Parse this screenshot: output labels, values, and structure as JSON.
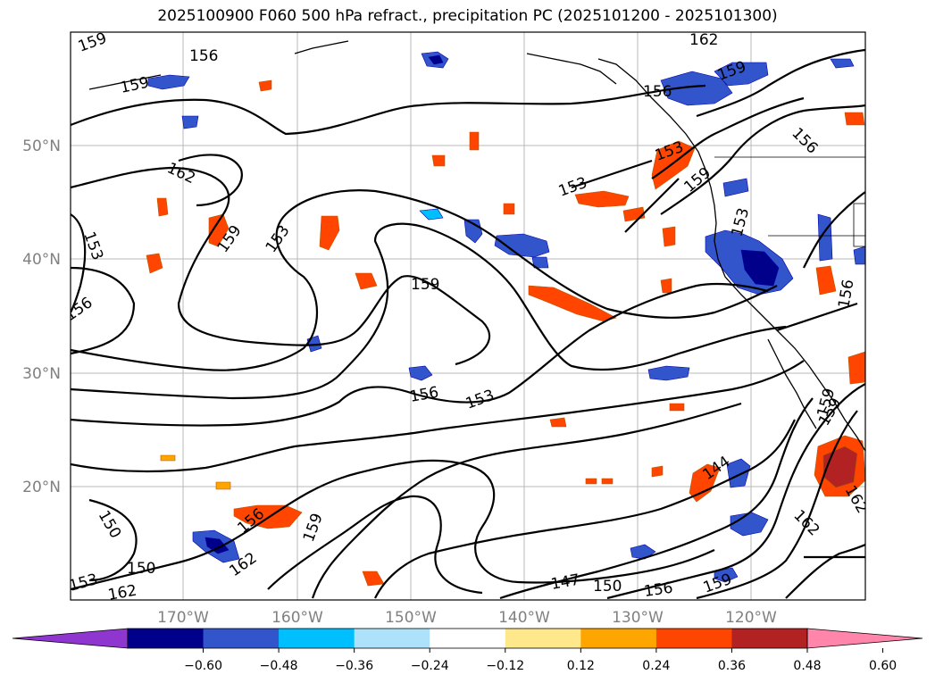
{
  "title": "2025100900 F060 500 hPa refract., precipitation PC (2025101200 - 2025101300)",
  "map": {
    "lat_labels": [
      "50°N",
      "40°N",
      "30°N",
      "20°N"
    ],
    "lon_labels": [
      "170°W",
      "160°W",
      "150°W",
      "140°W",
      "130°W",
      "120°W"
    ],
    "contour_labels": [
      "159",
      "156",
      "162",
      "159",
      "162",
      "153",
      "159",
      "153",
      "156",
      "159",
      "156",
      "153",
      "153",
      "159",
      "153",
      "156",
      "159",
      "156",
      "153",
      "156",
      "150",
      "150",
      "153",
      "162",
      "156",
      "159",
      "162",
      "144",
      "159",
      "162",
      "159",
      "156",
      "150",
      "147",
      "159",
      "162"
    ]
  },
  "colorbar": {
    "ticks": [
      "−0.60",
      "−0.48",
      "−0.36",
      "−0.24",
      "−0.12",
      "0.12",
      "0.24",
      "0.36",
      "0.48",
      "0.60"
    ],
    "colors": [
      "#8f35d0",
      "#00008b",
      "#3355cc",
      "#00bfff",
      "#aee2fb",
      "#ffffff",
      "#ffe78c",
      "#ffa500",
      "#ff4500",
      "#b22222",
      "#ff85aa"
    ]
  }
}
